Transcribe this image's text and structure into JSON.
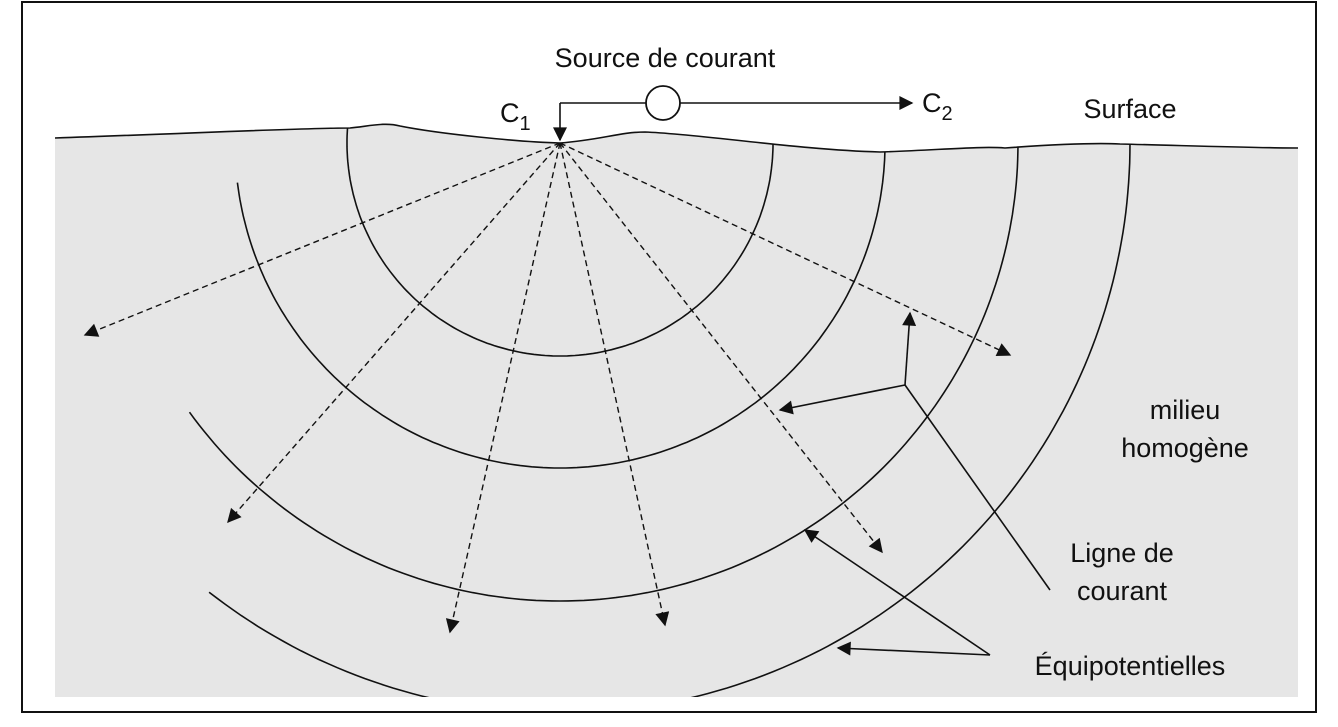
{
  "labels": {
    "source": "Source de courant",
    "c1": {
      "letter": "C",
      "sub": "1"
    },
    "c2": {
      "letter": "C",
      "sub": "2"
    },
    "surface": "Surface",
    "medium": [
      "milieu",
      "homogène"
    ],
    "current_line": [
      "Ligne de",
      "courant"
    ],
    "equipotentials": "Équipotentielles"
  }
}
